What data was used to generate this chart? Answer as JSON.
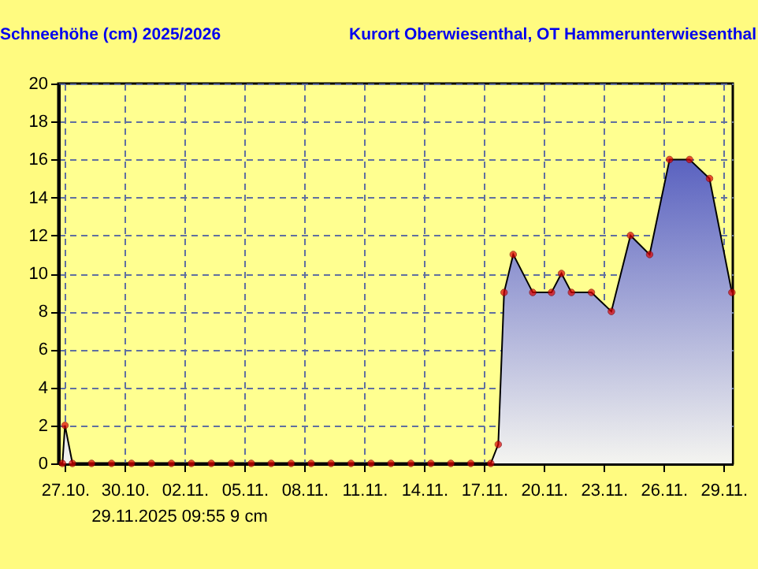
{
  "chart_data": {
    "type": "area",
    "title": "Schneehöhe (cm)  2025/2026",
    "subtitle": "Kurort Oberwiesenthal, OT Hammerunterwiesenthal",
    "annotations": [
      "29.11.2025  09:55   9 cm"
    ],
    "x": [
      "2025-10-26T21:00",
      "2025-10-27T00:00",
      "2025-10-27T09:00",
      "2025-10-28T08:00",
      "2025-10-29T08:00",
      "2025-10-30T08:00",
      "2025-10-31T08:00",
      "2025-11-01T08:00",
      "2025-11-02T08:00",
      "2025-11-03T08:00",
      "2025-11-04T08:00",
      "2025-11-05T08:00",
      "2025-11-06T08:00",
      "2025-11-07T08:00",
      "2025-11-08T08:00",
      "2025-11-09T08:00",
      "2025-11-10T08:00",
      "2025-11-11T08:00",
      "2025-11-12T08:00",
      "2025-11-13T08:00",
      "2025-11-14T08:00",
      "2025-11-15T08:00",
      "2025-11-16T08:00",
      "2025-11-17T08:00",
      "2025-11-17T17:00",
      "2025-11-18T00:00",
      "2025-11-18T11:00",
      "2025-11-19T10:30",
      "2025-11-20T09:00",
      "2025-11-20T21:00",
      "2025-11-21T09:00",
      "2025-11-22T09:00",
      "2025-11-23T09:00",
      "2025-11-24T08:00",
      "2025-11-25T07:00",
      "2025-11-26T07:00",
      "2025-11-27T07:00",
      "2025-11-28T07:00",
      "2025-11-29T09:55"
    ],
    "series": [
      {
        "color": "#5a62c0",
        "values": [
          0,
          2,
          0,
          0,
          0,
          0,
          0,
          0,
          0,
          0,
          0,
          0,
          0,
          0,
          0,
          0,
          0,
          0,
          0,
          0,
          0,
          0,
          0,
          0,
          1,
          9,
          11,
          9,
          9,
          10,
          9,
          9,
          8,
          12,
          11,
          16,
          16,
          15,
          9
        ]
      }
    ],
    "xlim": [
      "2025-10-26T16:00",
      "2025-11-29T11:00"
    ],
    "xticks": [
      {
        "value": "2025-10-27",
        "label": "27.10."
      },
      {
        "value": "2025-10-30",
        "label": "30.10."
      },
      {
        "value": "2025-11-02",
        "label": "02.11."
      },
      {
        "value": "2025-11-05",
        "label": "05.11."
      },
      {
        "value": "2025-11-08",
        "label": "08.11."
      },
      {
        "value": "2025-11-11",
        "label": "11.11."
      },
      {
        "value": "2025-11-14",
        "label": "14.11."
      },
      {
        "value": "2025-11-17",
        "label": "17.11."
      },
      {
        "value": "2025-11-20",
        "label": "20.11."
      },
      {
        "value": "2025-11-23",
        "label": "23.11."
      },
      {
        "value": "2025-11-26",
        "label": "26.11."
      },
      {
        "value": "2025-11-29",
        "label": "29.11."
      }
    ],
    "ylim": [
      0,
      20
    ],
    "yticks": [
      0,
      2,
      4,
      6,
      8,
      10,
      12,
      14,
      16,
      18,
      20
    ],
    "grid": true,
    "marker": "circle"
  }
}
